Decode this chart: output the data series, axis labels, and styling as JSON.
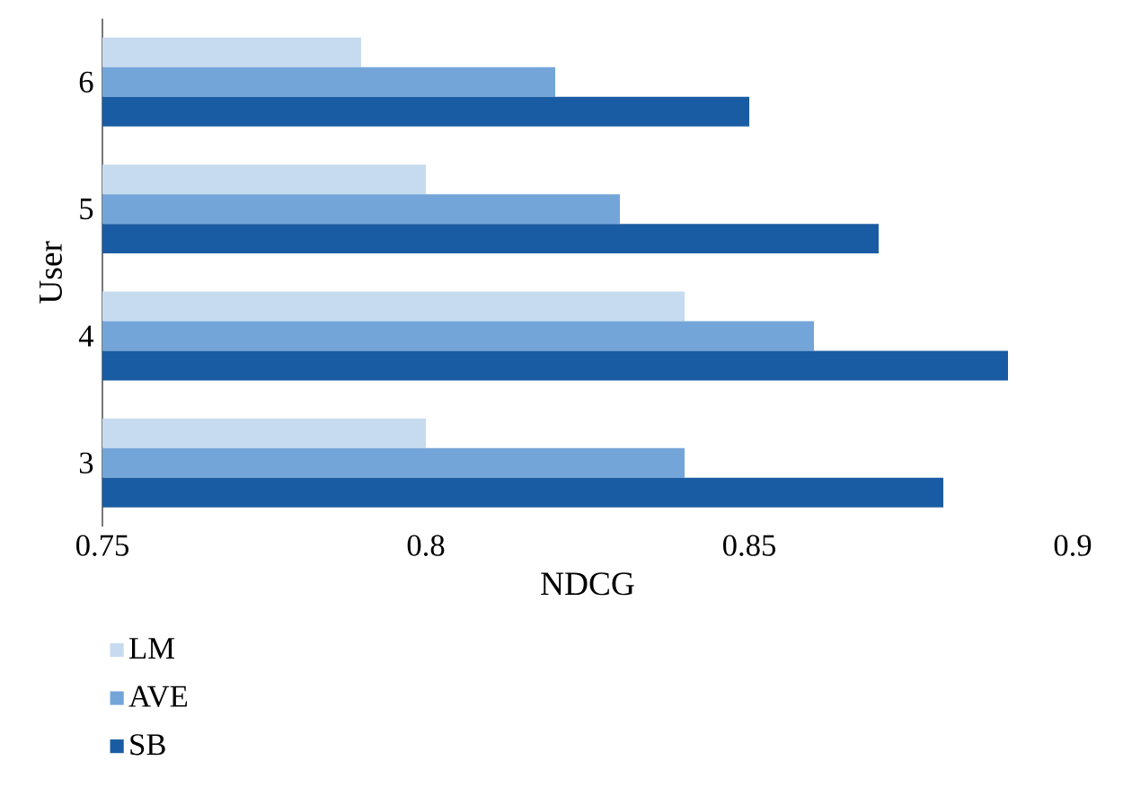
{
  "chart_data": {
    "type": "bar",
    "orientation": "horizontal",
    "xlabel": "NDCG",
    "ylabel": "User",
    "categories": [
      "6",
      "5",
      "4",
      "3"
    ],
    "series": [
      {
        "name": "LM",
        "color": "#c6dbef",
        "values": [
          0.79,
          0.8,
          0.84,
          0.8
        ]
      },
      {
        "name": "AVE",
        "color": "#74a5d9",
        "values": [
          0.82,
          0.83,
          0.86,
          0.84
        ]
      },
      {
        "name": "SB",
        "color": "#1a5ca3",
        "values": [
          0.85,
          0.87,
          0.89,
          0.88
        ]
      }
    ],
    "xlim": [
      0.75,
      0.9
    ],
    "xticks": [
      0.75,
      0.8,
      0.85,
      0.9
    ],
    "legend": "bottom left"
  }
}
